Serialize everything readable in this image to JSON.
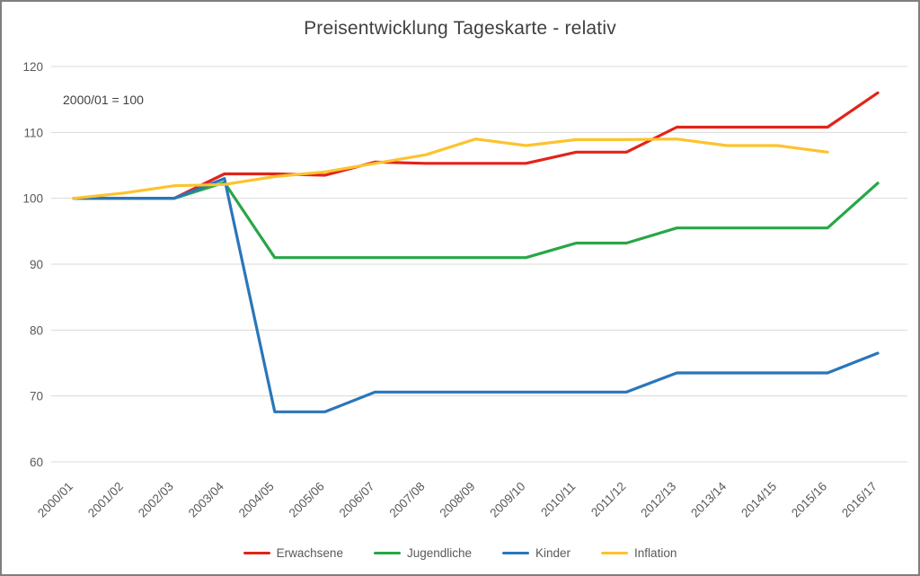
{
  "chart_data": {
    "type": "line",
    "title": "Preisentwicklung Tageskarte - relativ",
    "annotation": "2000/01 = 100",
    "categories": [
      "2000/01",
      "2001/02",
      "2002/03",
      "2003/04",
      "2004/05",
      "2005/06",
      "2006/07",
      "2007/08",
      "2008/09",
      "2009/10",
      "2010/11",
      "2011/12",
      "2012/13",
      "2013/14",
      "2014/15",
      "2015/16",
      "2016/17"
    ],
    "ylim": [
      60,
      120
    ],
    "ytick_step": 10,
    "yticks": [
      60,
      70,
      80,
      90,
      100,
      110,
      120
    ],
    "grid": true,
    "legend_position": "bottom",
    "colors": {
      "grid": "#d9d9d9",
      "axis_text": "#595959",
      "title_text": "#404040"
    },
    "series": [
      {
        "name": "Erwachsene",
        "color": "#e2231a",
        "values": [
          100,
          100,
          100,
          103.7,
          103.7,
          103.5,
          105.5,
          105.3,
          105.3,
          105.3,
          107,
          107,
          110.8,
          110.8,
          110.8,
          110.8,
          116
        ]
      },
      {
        "name": "Jugendliche",
        "color": "#27a747",
        "values": [
          100,
          100,
          100,
          102.4,
          91,
          91,
          91,
          91,
          91,
          91,
          93.2,
          93.2,
          95.5,
          95.5,
          95.5,
          95.5,
          102.3
        ]
      },
      {
        "name": "Kinder",
        "color": "#2a76b9",
        "values": [
          100,
          100,
          100,
          103,
          67.6,
          67.6,
          70.6,
          70.6,
          70.6,
          70.6,
          70.6,
          70.6,
          73.5,
          73.5,
          73.5,
          73.5,
          76.5
        ]
      },
      {
        "name": "Inflation",
        "color": "#fdc32e",
        "values": [
          100,
          100.8,
          101.9,
          102.1,
          103.3,
          104,
          105.3,
          106.6,
          109,
          108,
          108.9,
          108.9,
          109,
          108,
          108,
          107,
          null
        ]
      }
    ]
  }
}
